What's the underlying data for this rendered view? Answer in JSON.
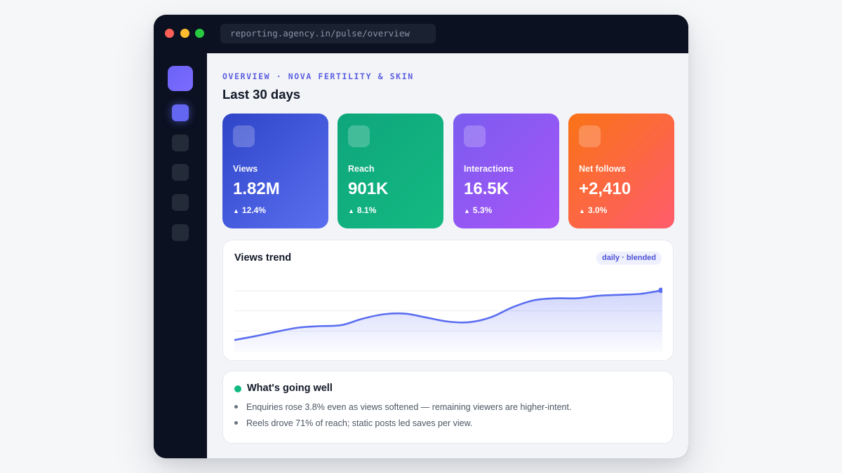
{
  "browser": {
    "url": "reporting.agency.in/pulse/overview"
  },
  "sidebar": {
    "items": [
      "nav-1",
      "nav-2",
      "nav-3",
      "nav-4",
      "nav-5"
    ],
    "active_index": 0
  },
  "header": {
    "eyebrow": "OVERVIEW · NOVA FERTILITY & SKIN",
    "title": "Last 30 days"
  },
  "kpis": [
    {
      "label": "Views",
      "value": "1.82M",
      "delta": "12.4%"
    },
    {
      "label": "Reach",
      "value": "901K",
      "delta": "8.1%"
    },
    {
      "label": "Interactions",
      "value": "16.5K",
      "delta": "5.3%"
    },
    {
      "label": "Net follows",
      "value": "+2,410",
      "delta": "3.0%"
    }
  ],
  "trend": {
    "title": "Views trend",
    "badge": "daily · blended",
    "line_color": "#5b6ef0"
  },
  "chart_data": {
    "type": "area",
    "title": "Views trend",
    "x": [
      0,
      1,
      2,
      3,
      4,
      5,
      6,
      7,
      8,
      9,
      10,
      11,
      12,
      13,
      14,
      15,
      16,
      17,
      18,
      19,
      20
    ],
    "values": [
      0,
      8,
      17,
      25,
      28,
      30,
      43,
      52,
      53,
      45,
      37,
      36,
      46,
      66,
      80,
      84,
      84,
      89,
      91,
      93,
      100
    ],
    "ylim": [
      -25,
      130
    ],
    "grid": true,
    "legend": "none"
  },
  "insights": {
    "title": "What's going well",
    "items": [
      "Enquiries rose 3.8% even as views softened — remaining viewers are higher-intent.",
      "Reels drove 71% of reach; static posts led saves per view."
    ]
  },
  "colors": {
    "accent": "#5b5fe0",
    "positive": "#10b981",
    "window_bg": "#0b1120"
  }
}
